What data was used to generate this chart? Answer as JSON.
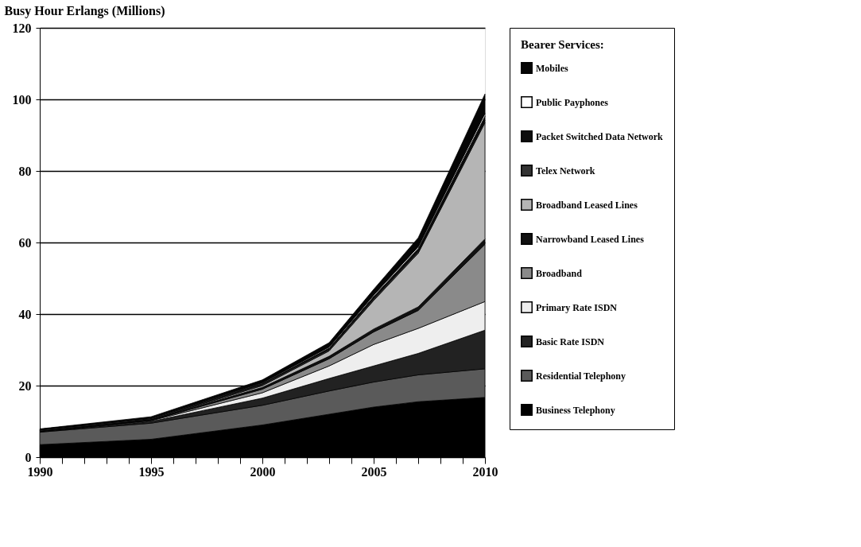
{
  "chart_data": {
    "type": "area",
    "stacked": true,
    "ylabel": "Busy Hour Erlangs (Millions)",
    "legend_title": "Bearer Services:",
    "legend": "right",
    "grid": "y",
    "x": [
      1990,
      1995,
      2000,
      2003,
      2005,
      2007,
      2010
    ],
    "xlim": [
      1990,
      2010
    ],
    "xticks": [
      1990,
      {
        "value": 1991,
        "label": null
      },
      {
        "value": 1992,
        "label": null
      },
      {
        "value": 1993,
        "label": null
      },
      {
        "value": 1994,
        "label": null
      },
      1995,
      {
        "value": 1996,
        "label": null
      },
      {
        "value": 1997,
        "label": null
      },
      {
        "value": 1998,
        "label": null
      },
      {
        "value": 1999,
        "label": null
      },
      2000,
      {
        "value": 2001,
        "label": null
      },
      {
        "value": 2002,
        "label": null
      },
      {
        "value": 2003,
        "label": null
      },
      {
        "value": 2004,
        "label": null
      },
      2005,
      {
        "value": 2006,
        "label": null
      },
      {
        "value": 2007,
        "label": null
      },
      {
        "value": 2008,
        "label": null
      },
      {
        "value": 2009,
        "label": null
      },
      2010
    ],
    "ylim": [
      0,
      120
    ],
    "yticks": [
      0,
      20,
      40,
      60,
      80,
      100,
      120
    ],
    "series": [
      {
        "name": "Business Telephony",
        "color": "#000000",
        "values": [
          3.5,
          5,
          9,
          12,
          14,
          15.5,
          16.7
        ]
      },
      {
        "name": "Residential Telephony",
        "color": "#5a5a5a",
        "values": [
          3.5,
          4.5,
          5.5,
          6.5,
          7,
          7.5,
          8
        ]
      },
      {
        "name": "Basic Rate ISDN",
        "color": "#222222",
        "values": [
          0.1,
          0.5,
          2,
          3.5,
          4.5,
          6,
          10.8
        ]
      },
      {
        "name": "Primary Rate ISDN",
        "color": "#eeeeee",
        "values": [
          0.1,
          0.2,
          1.5,
          3.5,
          6,
          7,
          8
        ]
      },
      {
        "name": "Broadband",
        "color": "#8a8a8a",
        "values": [
          0,
          0.1,
          1,
          2,
          3.5,
          5,
          16
        ]
      },
      {
        "name": "Narrowband Leased Lines",
        "color": "#111111",
        "values": [
          0.1,
          0.2,
          0.5,
          0.7,
          0.8,
          1,
          1.5
        ]
      },
      {
        "name": "Broadband Leased Lines",
        "color": "#b5b5b5",
        "values": [
          0,
          0,
          0.5,
          1.5,
          8,
          15,
          32.5
        ]
      },
      {
        "name": "Telex Network",
        "color": "#333333",
        "values": [
          0.3,
          0.3,
          0.4,
          0.4,
          0.5,
          0.5,
          0.6
        ]
      },
      {
        "name": "Packet Switched Data Network",
        "color": "#0d0d0d",
        "values": [
          0.1,
          0.1,
          0.2,
          0.4,
          0.6,
          0.8,
          1.2
        ]
      },
      {
        "name": "Public Payphones",
        "color": "#ffffff",
        "values": [
          0.1,
          0.1,
          0.2,
          0.3,
          0.4,
          0.5,
          0.8
        ]
      },
      {
        "name": "Mobiles",
        "color": "#050505",
        "values": [
          0.1,
          0.3,
          0.8,
          1.2,
          1.6,
          2.5,
          5.4
        ]
      }
    ]
  }
}
